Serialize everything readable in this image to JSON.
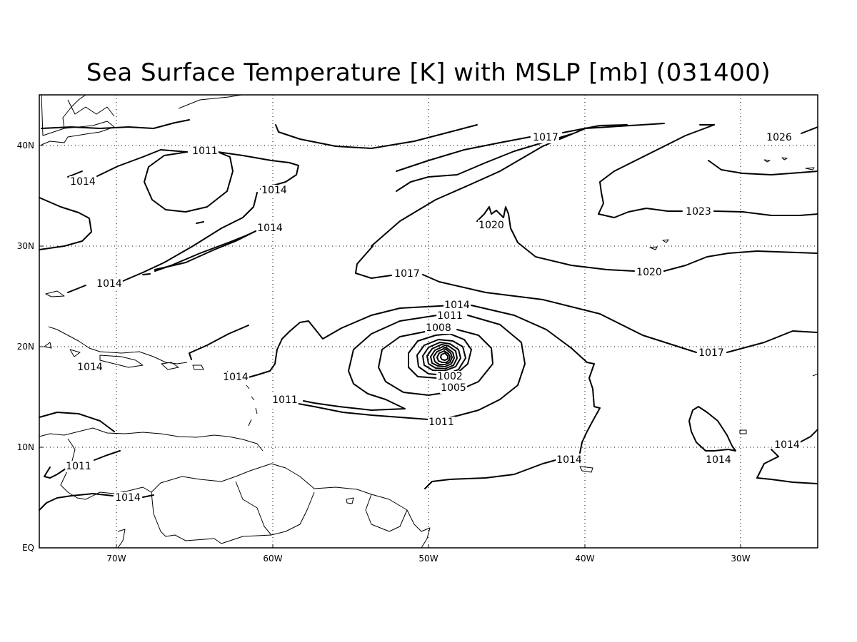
{
  "title": "Sea Surface Temperature [K] with MSLP [mb] (031400)",
  "axes": {
    "lon_ticks": [
      "70W",
      "60W",
      "50W",
      "40W",
      "30W"
    ],
    "lat_ticks": [
      "40N",
      "30N",
      "20N",
      "10N",
      "EQ"
    ]
  },
  "contour_labels": {
    "c1": "1017",
    "c2": "1026",
    "c3": "1011",
    "c4": "1014",
    "c5": "1014",
    "c6": "1014",
    "c7": "1020",
    "c8": "1023",
    "c9": "1014",
    "c10": "1017",
    "c11": "1020",
    "c12": "1014",
    "c13": "1011",
    "c14": "1008",
    "c15": "1017",
    "c16": "1014",
    "c17": "1014",
    "c18": "1002",
    "c19": "1005",
    "c20": "1011",
    "c21": "1011",
    "c22": "1011",
    "c23": "1014",
    "c24": "1014",
    "c25": "1014",
    "c26": "1014"
  }
}
